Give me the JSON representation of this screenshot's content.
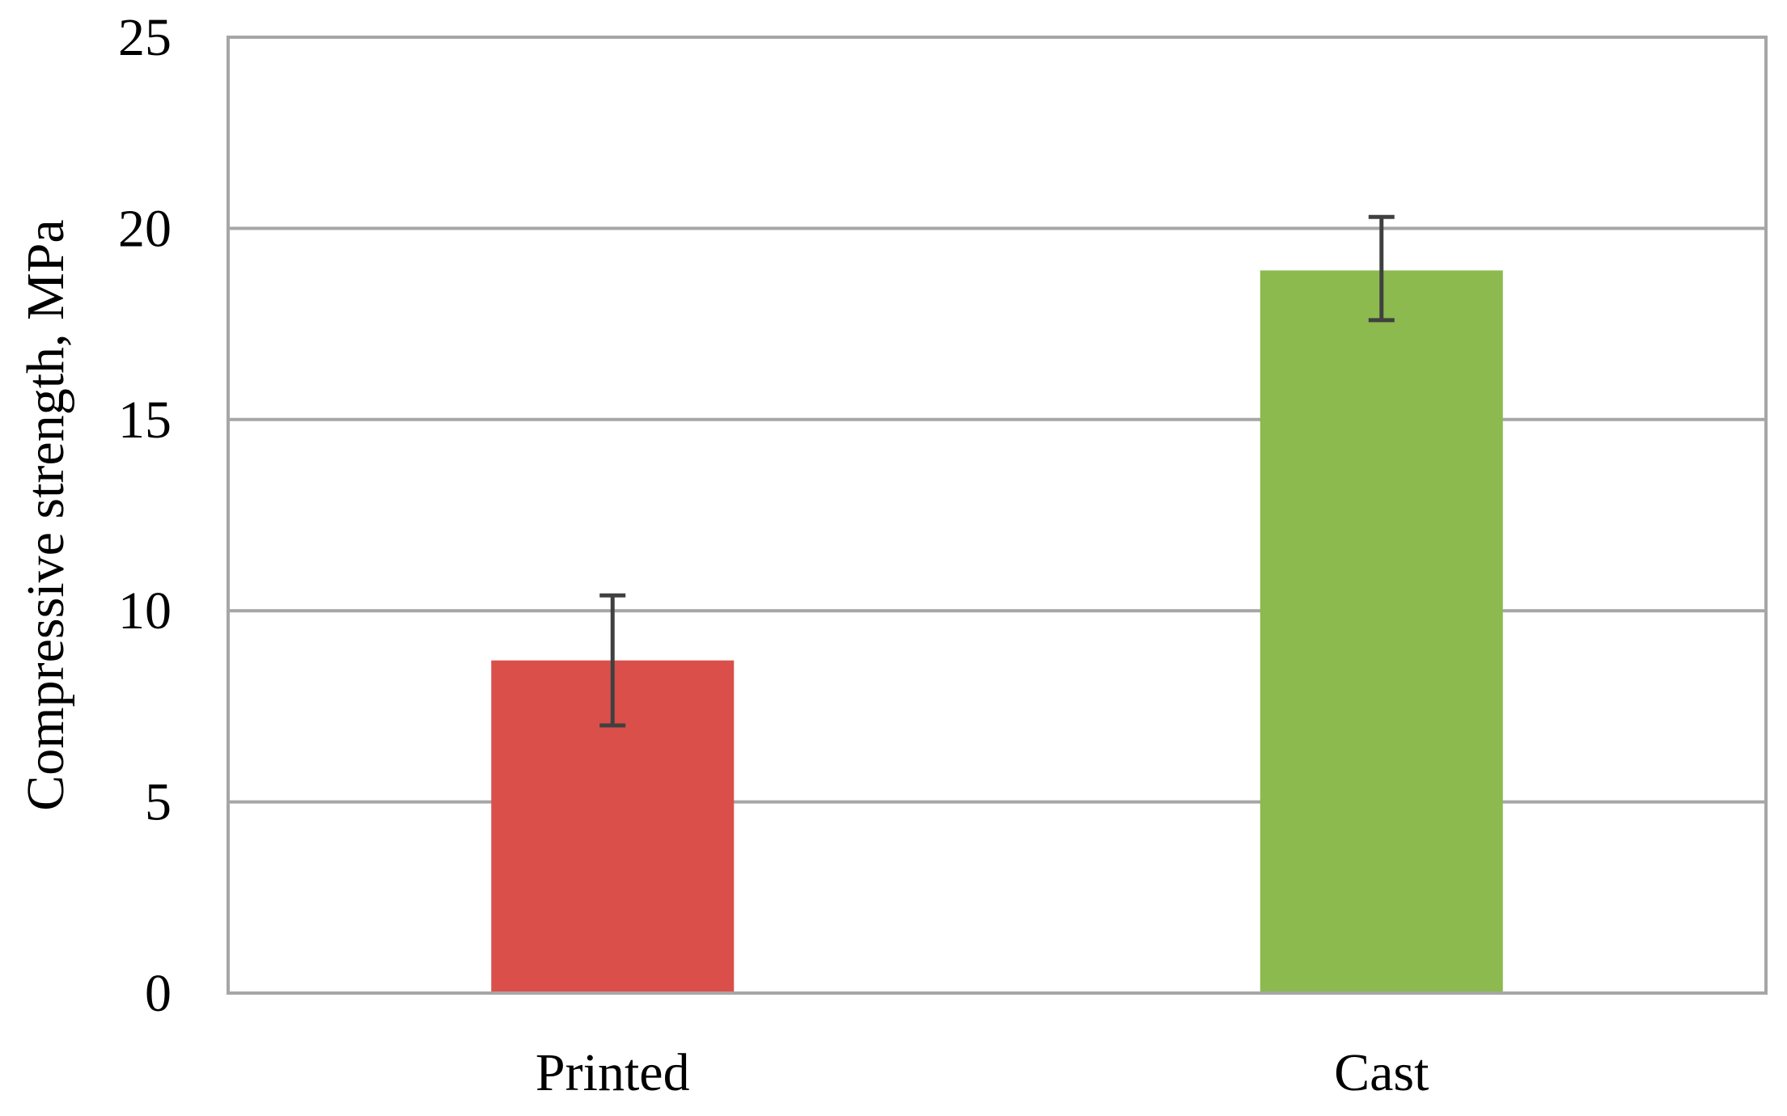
{
  "chart_data": {
    "type": "bar",
    "title": "",
    "xlabel": "",
    "ylabel": "Compressive strength, MPa",
    "categories": [
      "Printed",
      "Cast"
    ],
    "values": [
      8.7,
      18.9
    ],
    "error_low": [
      7.0,
      17.6
    ],
    "error_high": [
      10.4,
      20.3
    ],
    "bar_colors": [
      "#DB4F4B",
      "#8CBA4E"
    ],
    "error_bar_color": "#404040",
    "gridline_color": "#A6A6A6",
    "ylim": [
      0,
      25
    ],
    "yticks": [
      0,
      5,
      10,
      15,
      20,
      25
    ],
    "ytick_labels": [
      "0",
      "5",
      "10",
      "15",
      "20",
      "25"
    ],
    "grid": true,
    "legend": "none"
  }
}
